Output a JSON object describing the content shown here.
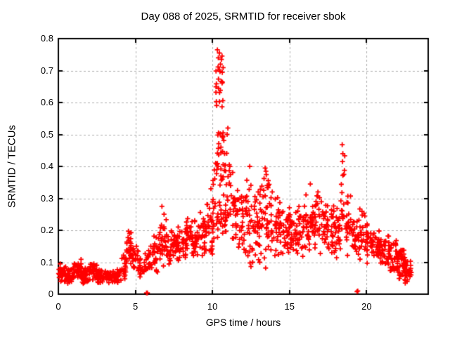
{
  "page_title": "Day 088 of 2025, SRMTID for receiver sbok",
  "colors": {
    "background": "#ffffff",
    "text": "#000000",
    "border": "#000000",
    "grid": "#b0b0b0",
    "marker": "#ff0000"
  },
  "chart_data": {
    "type": "scatter",
    "title": "Day 088 of 2025, SRMTID for receiver sbok",
    "xlabel": "GPS time / hours",
    "ylabel": "SRMTID / TECUs",
    "xlim": [
      0,
      24
    ],
    "ylim": [
      0,
      0.8
    ],
    "xticks": [
      0,
      5,
      10,
      15,
      20
    ],
    "xtick_labels": [
      "0",
      "5",
      "10",
      "15",
      "20"
    ],
    "yticks": [
      0,
      0.1,
      0.2,
      0.3,
      0.4,
      0.5,
      0.6,
      0.7,
      0.8
    ],
    "ytick_labels": [
      "0",
      "0.1",
      "0.2",
      "0.3",
      "0.4",
      "0.5",
      "0.6",
      "0.7",
      "0.8"
    ],
    "grid": true,
    "legend": "none",
    "marker": "plus",
    "marker_color": "#ff0000",
    "grid_color": "#b0b0b0",
    "series_name": "SRMTID",
    "bins_format": "[x_start_hour, x_end_hour, n_points, value_min, value_max]",
    "density_bins": [
      [
        0.0,
        0.5,
        35,
        0.03,
        0.1
      ],
      [
        0.5,
        1.0,
        35,
        0.03,
        0.09
      ],
      [
        1.0,
        1.5,
        35,
        0.04,
        0.11
      ],
      [
        1.5,
        2.0,
        35,
        0.03,
        0.09
      ],
      [
        2.0,
        2.5,
        35,
        0.04,
        0.11
      ],
      [
        2.5,
        3.0,
        30,
        0.03,
        0.08
      ],
      [
        3.0,
        3.5,
        30,
        0.03,
        0.08
      ],
      [
        3.5,
        4.0,
        30,
        0.03,
        0.09
      ],
      [
        4.0,
        4.4,
        22,
        0.04,
        0.13
      ],
      [
        4.4,
        4.8,
        25,
        0.08,
        0.2
      ],
      [
        4.8,
        5.2,
        22,
        0.06,
        0.16
      ],
      [
        5.2,
        5.6,
        20,
        0.04,
        0.12
      ],
      [
        5.6,
        6.0,
        20,
        0.05,
        0.15
      ],
      [
        6.0,
        6.5,
        28,
        0.06,
        0.2
      ],
      [
        6.5,
        7.0,
        28,
        0.08,
        0.26
      ],
      [
        7.0,
        7.5,
        28,
        0.08,
        0.21
      ],
      [
        7.5,
        8.0,
        28,
        0.1,
        0.22
      ],
      [
        8.0,
        8.5,
        30,
        0.1,
        0.24
      ],
      [
        8.5,
        9.0,
        30,
        0.1,
        0.26
      ],
      [
        9.0,
        9.5,
        30,
        0.1,
        0.27
      ],
      [
        9.5,
        10.0,
        30,
        0.1,
        0.31
      ],
      [
        10.0,
        10.2,
        14,
        0.12,
        0.42
      ],
      [
        10.2,
        10.75,
        30,
        0.27,
        0.55
      ],
      [
        10.2,
        10.75,
        22,
        0.55,
        0.77
      ],
      [
        10.2,
        10.9,
        25,
        0.15,
        0.3
      ],
      [
        10.75,
        11.1,
        18,
        0.18,
        0.52
      ],
      [
        11.1,
        11.5,
        20,
        0.14,
        0.44
      ],
      [
        11.5,
        12.0,
        30,
        0.1,
        0.35
      ],
      [
        12.0,
        12.5,
        30,
        0.08,
        0.4
      ],
      [
        12.5,
        13.0,
        30,
        0.07,
        0.33
      ],
      [
        13.0,
        13.5,
        30,
        0.06,
        0.4
      ],
      [
        13.5,
        14.0,
        30,
        0.1,
        0.38
      ],
      [
        14.0,
        14.5,
        30,
        0.1,
        0.33
      ],
      [
        14.5,
        15.0,
        30,
        0.1,
        0.29
      ],
      [
        15.0,
        15.5,
        30,
        0.11,
        0.27
      ],
      [
        15.5,
        16.0,
        30,
        0.1,
        0.3
      ],
      [
        16.0,
        16.5,
        30,
        0.1,
        0.33
      ],
      [
        16.5,
        17.0,
        30,
        0.1,
        0.35
      ],
      [
        17.0,
        17.5,
        30,
        0.1,
        0.3
      ],
      [
        17.5,
        18.0,
        30,
        0.1,
        0.28
      ],
      [
        18.0,
        18.3,
        18,
        0.1,
        0.3
      ],
      [
        18.3,
        18.6,
        16,
        0.13,
        0.47
      ],
      [
        18.6,
        19.0,
        22,
        0.1,
        0.33
      ],
      [
        19.0,
        19.5,
        28,
        0.1,
        0.28
      ],
      [
        19.5,
        20.0,
        28,
        0.1,
        0.29
      ],
      [
        20.0,
        20.5,
        30,
        0.08,
        0.25
      ],
      [
        20.5,
        21.0,
        30,
        0.08,
        0.22
      ],
      [
        21.0,
        21.5,
        30,
        0.06,
        0.2
      ],
      [
        21.5,
        22.0,
        30,
        0.05,
        0.18
      ],
      [
        22.0,
        22.45,
        40,
        0.03,
        0.15
      ],
      [
        22.45,
        22.9,
        40,
        0.03,
        0.12
      ]
    ],
    "notable_points": [
      [
        5.72,
        0.004
      ],
      [
        5.75,
        0.004
      ],
      [
        5.78,
        0.004
      ],
      [
        19.38,
        0.008
      ],
      [
        19.43,
        0.01
      ],
      [
        10.32,
        0.765
      ],
      [
        10.38,
        0.74
      ],
      [
        10.45,
        0.755
      ],
      [
        10.52,
        0.72
      ],
      [
        10.58,
        0.735
      ],
      [
        4.55,
        0.197
      ],
      [
        4.62,
        0.19
      ],
      [
        6.72,
        0.275
      ],
      [
        9.9,
        0.33
      ],
      [
        10.95,
        0.5
      ],
      [
        11.0,
        0.52
      ],
      [
        12.42,
        0.4
      ],
      [
        13.42,
        0.395
      ],
      [
        13.47,
        0.385
      ],
      [
        16.35,
        0.345
      ],
      [
        18.42,
        0.468
      ],
      [
        18.44,
        0.415
      ],
      [
        18.46,
        0.44
      ]
    ]
  }
}
